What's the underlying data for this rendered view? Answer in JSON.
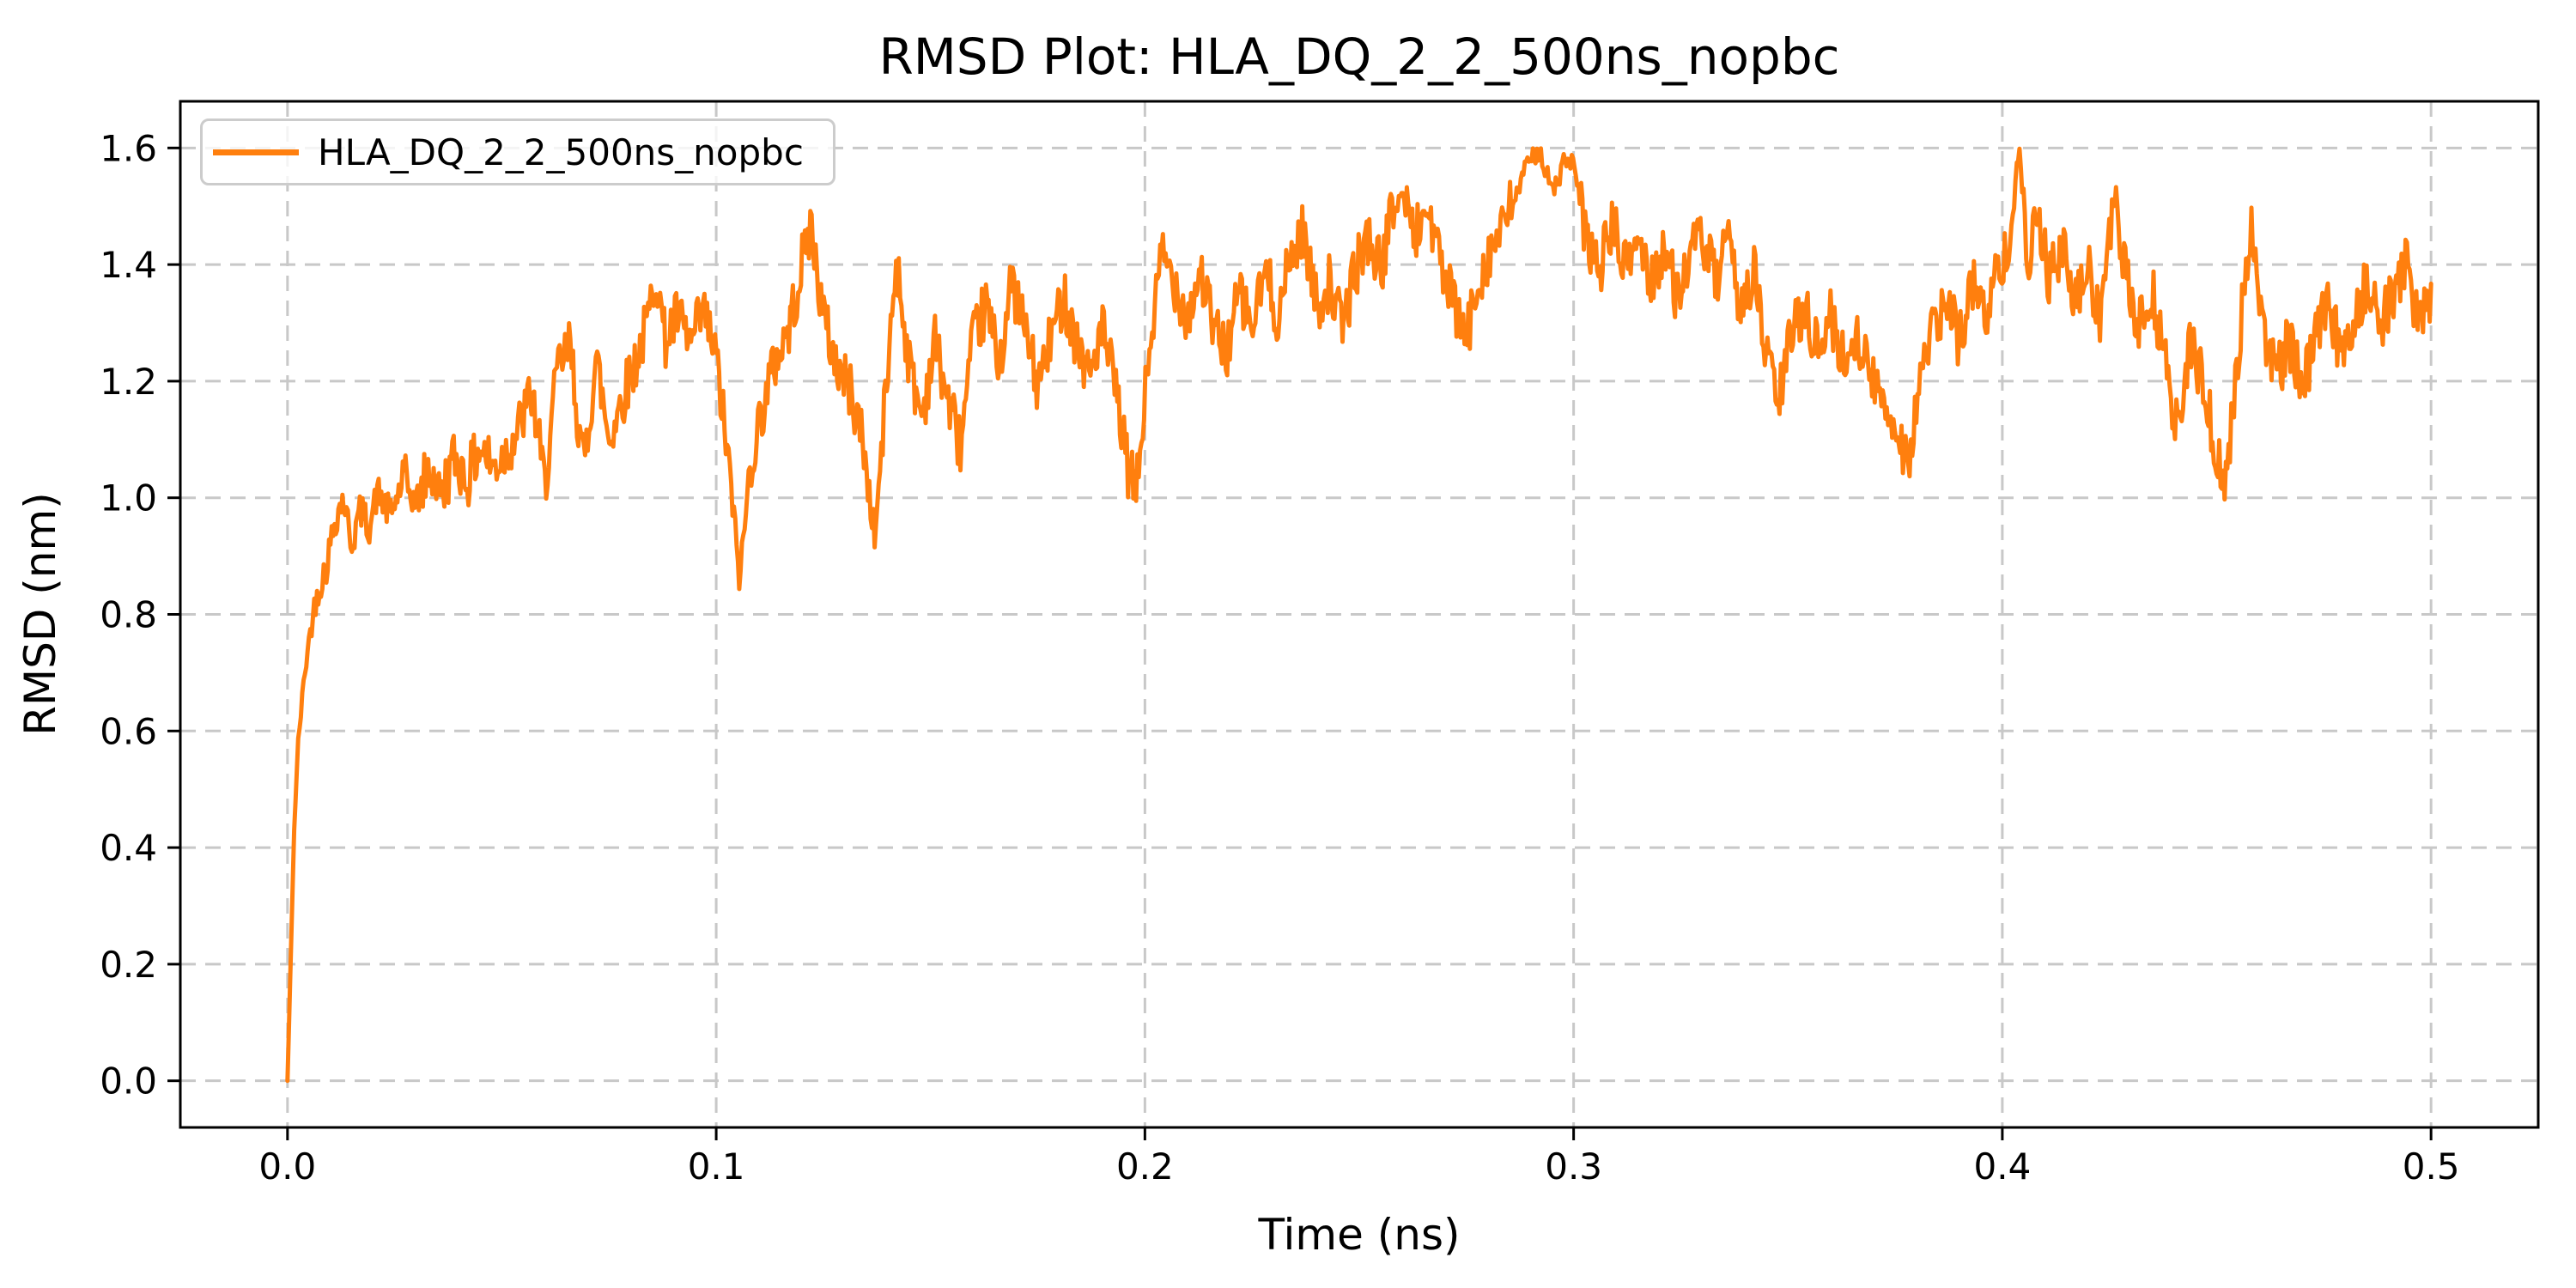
{
  "figure": {
    "background": "#ffffff",
    "text_color": "#000000"
  },
  "chart_data": {
    "type": "line",
    "title": "RMSD Plot: HLA_DQ_2_2_500ns_nopbc",
    "xlabel": "Time (ns)",
    "ylabel": "RMSD (nm)",
    "xlim": [
      -0.025,
      0.525
    ],
    "ylim": [
      -0.08,
      1.68
    ],
    "xticks": [
      0.0,
      0.1,
      0.2,
      0.3,
      0.4,
      0.5
    ],
    "xtick_labels": [
      "0.0",
      "0.1",
      "0.2",
      "0.3",
      "0.4",
      "0.5"
    ],
    "yticks": [
      0.0,
      0.2,
      0.4,
      0.6,
      0.8,
      1.0,
      1.2,
      1.4,
      1.6
    ],
    "ytick_labels": [
      "0.0",
      "0.2",
      "0.4",
      "0.6",
      "0.8",
      "1.0",
      "1.2",
      "1.4",
      "1.6"
    ],
    "grid": true,
    "grid_style": "dashed",
    "grid_color": "#c8c8c8",
    "spine_color": "#000000",
    "legend": {
      "position": "upper-left",
      "entries": [
        {
          "label": "HLA_DQ_2_2_500ns_nopbc",
          "color": "#ff7f0e"
        }
      ]
    },
    "series": [
      {
        "name": "HLA_DQ_2_2_500ns_nopbc",
        "color": "#ff7f0e",
        "line_width": 5,
        "samples": 1600,
        "seed": 42,
        "noise_halfwidth": 0.05,
        "anchor_points": [
          [
            0.0,
            0.0
          ],
          [
            0.0008,
            0.22
          ],
          [
            0.0015,
            0.42
          ],
          [
            0.0025,
            0.58
          ],
          [
            0.004,
            0.7
          ],
          [
            0.0055,
            0.78
          ],
          [
            0.007,
            0.84
          ],
          [
            0.009,
            0.88
          ],
          [
            0.011,
            0.96
          ],
          [
            0.013,
            1.0
          ],
          [
            0.015,
            0.92
          ],
          [
            0.017,
            0.98
          ],
          [
            0.019,
            0.95
          ],
          [
            0.021,
            1.01
          ],
          [
            0.024,
            0.97
          ],
          [
            0.027,
            1.03
          ],
          [
            0.03,
            0.99
          ],
          [
            0.033,
            1.05
          ],
          [
            0.036,
            1.01
          ],
          [
            0.039,
            1.07
          ],
          [
            0.042,
            1.03
          ],
          [
            0.045,
            1.09
          ],
          [
            0.048,
            1.05
          ],
          [
            0.051,
            1.08
          ],
          [
            0.054,
            1.12
          ],
          [
            0.057,
            1.18
          ],
          [
            0.06,
            1.02
          ],
          [
            0.063,
            1.22
          ],
          [
            0.066,
            1.26
          ],
          [
            0.069,
            1.05
          ],
          [
            0.072,
            1.24
          ],
          [
            0.075,
            1.1
          ],
          [
            0.078,
            1.17
          ],
          [
            0.081,
            1.23
          ],
          [
            0.084,
            1.3
          ],
          [
            0.086,
            1.39
          ],
          [
            0.088,
            1.27
          ],
          [
            0.091,
            1.31
          ],
          [
            0.094,
            1.26
          ],
          [
            0.097,
            1.32
          ],
          [
            0.1,
            1.24
          ],
          [
            0.103,
            1.05
          ],
          [
            0.1055,
            0.86
          ],
          [
            0.108,
            1.06
          ],
          [
            0.111,
            1.16
          ],
          [
            0.114,
            1.24
          ],
          [
            0.117,
            1.29
          ],
          [
            0.12,
            1.4
          ],
          [
            0.122,
            1.47
          ],
          [
            0.125,
            1.31
          ],
          [
            0.128,
            1.23
          ],
          [
            0.131,
            1.19
          ],
          [
            0.134,
            1.11
          ],
          [
            0.137,
            0.93
          ],
          [
            0.14,
            1.22
          ],
          [
            0.142,
            1.41
          ],
          [
            0.145,
            1.23
          ],
          [
            0.148,
            1.14
          ],
          [
            0.151,
            1.27
          ],
          [
            0.154,
            1.17
          ],
          [
            0.157,
            1.09
          ],
          [
            0.16,
            1.27
          ],
          [
            0.163,
            1.33
          ],
          [
            0.166,
            1.23
          ],
          [
            0.169,
            1.37
          ],
          [
            0.172,
            1.29
          ],
          [
            0.175,
            1.19
          ],
          [
            0.178,
            1.27
          ],
          [
            0.181,
            1.35
          ],
          [
            0.184,
            1.27
          ],
          [
            0.187,
            1.21
          ],
          [
            0.19,
            1.29
          ],
          [
            0.193,
            1.19
          ],
          [
            0.196,
            1.05
          ],
          [
            0.198,
            1.01
          ],
          [
            0.201,
            1.25
          ],
          [
            0.204,
            1.42
          ],
          [
            0.207,
            1.37
          ],
          [
            0.21,
            1.31
          ],
          [
            0.213,
            1.39
          ],
          [
            0.216,
            1.29
          ],
          [
            0.219,
            1.25
          ],
          [
            0.222,
            1.35
          ],
          [
            0.225,
            1.29
          ],
          [
            0.228,
            1.39
          ],
          [
            0.231,
            1.31
          ],
          [
            0.234,
            1.41
          ],
          [
            0.237,
            1.46
          ],
          [
            0.24,
            1.33
          ],
          [
            0.243,
            1.37
          ],
          [
            0.246,
            1.29
          ],
          [
            0.249,
            1.39
          ],
          [
            0.252,
            1.45
          ],
          [
            0.255,
            1.39
          ],
          [
            0.258,
            1.5
          ],
          [
            0.26,
            1.52
          ],
          [
            0.263,
            1.45
          ],
          [
            0.266,
            1.5
          ],
          [
            0.269,
            1.4
          ],
          [
            0.272,
            1.33
          ],
          [
            0.275,
            1.27
          ],
          [
            0.278,
            1.38
          ],
          [
            0.281,
            1.43
          ],
          [
            0.284,
            1.47
          ],
          [
            0.287,
            1.53
          ],
          [
            0.29,
            1.58
          ],
          [
            0.292,
            1.6
          ],
          [
            0.295,
            1.52
          ],
          [
            0.298,
            1.58
          ],
          [
            0.3,
            1.57
          ],
          [
            0.303,
            1.44
          ],
          [
            0.306,
            1.39
          ],
          [
            0.309,
            1.47
          ],
          [
            0.312,
            1.39
          ],
          [
            0.315,
            1.45
          ],
          [
            0.318,
            1.37
          ],
          [
            0.321,
            1.43
          ],
          [
            0.324,
            1.35
          ],
          [
            0.327,
            1.41
          ],
          [
            0.33,
            1.45
          ],
          [
            0.333,
            1.37
          ],
          [
            0.336,
            1.43
          ],
          [
            0.339,
            1.33
          ],
          [
            0.342,
            1.39
          ],
          [
            0.345,
            1.24
          ],
          [
            0.348,
            1.17
          ],
          [
            0.351,
            1.29
          ],
          [
            0.354,
            1.33
          ],
          [
            0.357,
            1.25
          ],
          [
            0.36,
            1.31
          ],
          [
            0.363,
            1.23
          ],
          [
            0.366,
            1.29
          ],
          [
            0.369,
            1.21
          ],
          [
            0.372,
            1.17
          ],
          [
            0.375,
            1.13
          ],
          [
            0.378,
            1.06
          ],
          [
            0.381,
            1.21
          ],
          [
            0.384,
            1.29
          ],
          [
            0.387,
            1.33
          ],
          [
            0.39,
            1.27
          ],
          [
            0.393,
            1.37
          ],
          [
            0.396,
            1.31
          ],
          [
            0.399,
            1.39
          ],
          [
            0.402,
            1.46
          ],
          [
            0.404,
            1.6
          ],
          [
            0.406,
            1.41
          ],
          [
            0.408,
            1.5
          ],
          [
            0.411,
            1.37
          ],
          [
            0.414,
            1.43
          ],
          [
            0.417,
            1.33
          ],
          [
            0.42,
            1.39
          ],
          [
            0.423,
            1.31
          ],
          [
            0.426,
            1.51
          ],
          [
            0.429,
            1.37
          ],
          [
            0.432,
            1.29
          ],
          [
            0.435,
            1.35
          ],
          [
            0.438,
            1.23
          ],
          [
            0.441,
            1.11
          ],
          [
            0.444,
            1.27
          ],
          [
            0.447,
            1.19
          ],
          [
            0.45,
            1.07
          ],
          [
            0.452,
            1.01
          ],
          [
            0.455,
            1.25
          ],
          [
            0.458,
            1.47
          ],
          [
            0.461,
            1.29
          ],
          [
            0.464,
            1.21
          ],
          [
            0.467,
            1.27
          ],
          [
            0.47,
            1.19
          ],
          [
            0.473,
            1.27
          ],
          [
            0.476,
            1.33
          ],
          [
            0.479,
            1.25
          ],
          [
            0.482,
            1.31
          ],
          [
            0.485,
            1.37
          ],
          [
            0.488,
            1.29
          ],
          [
            0.491,
            1.35
          ],
          [
            0.494,
            1.4
          ],
          [
            0.497,
            1.31
          ],
          [
            0.5,
            1.33
          ]
        ]
      }
    ]
  }
}
